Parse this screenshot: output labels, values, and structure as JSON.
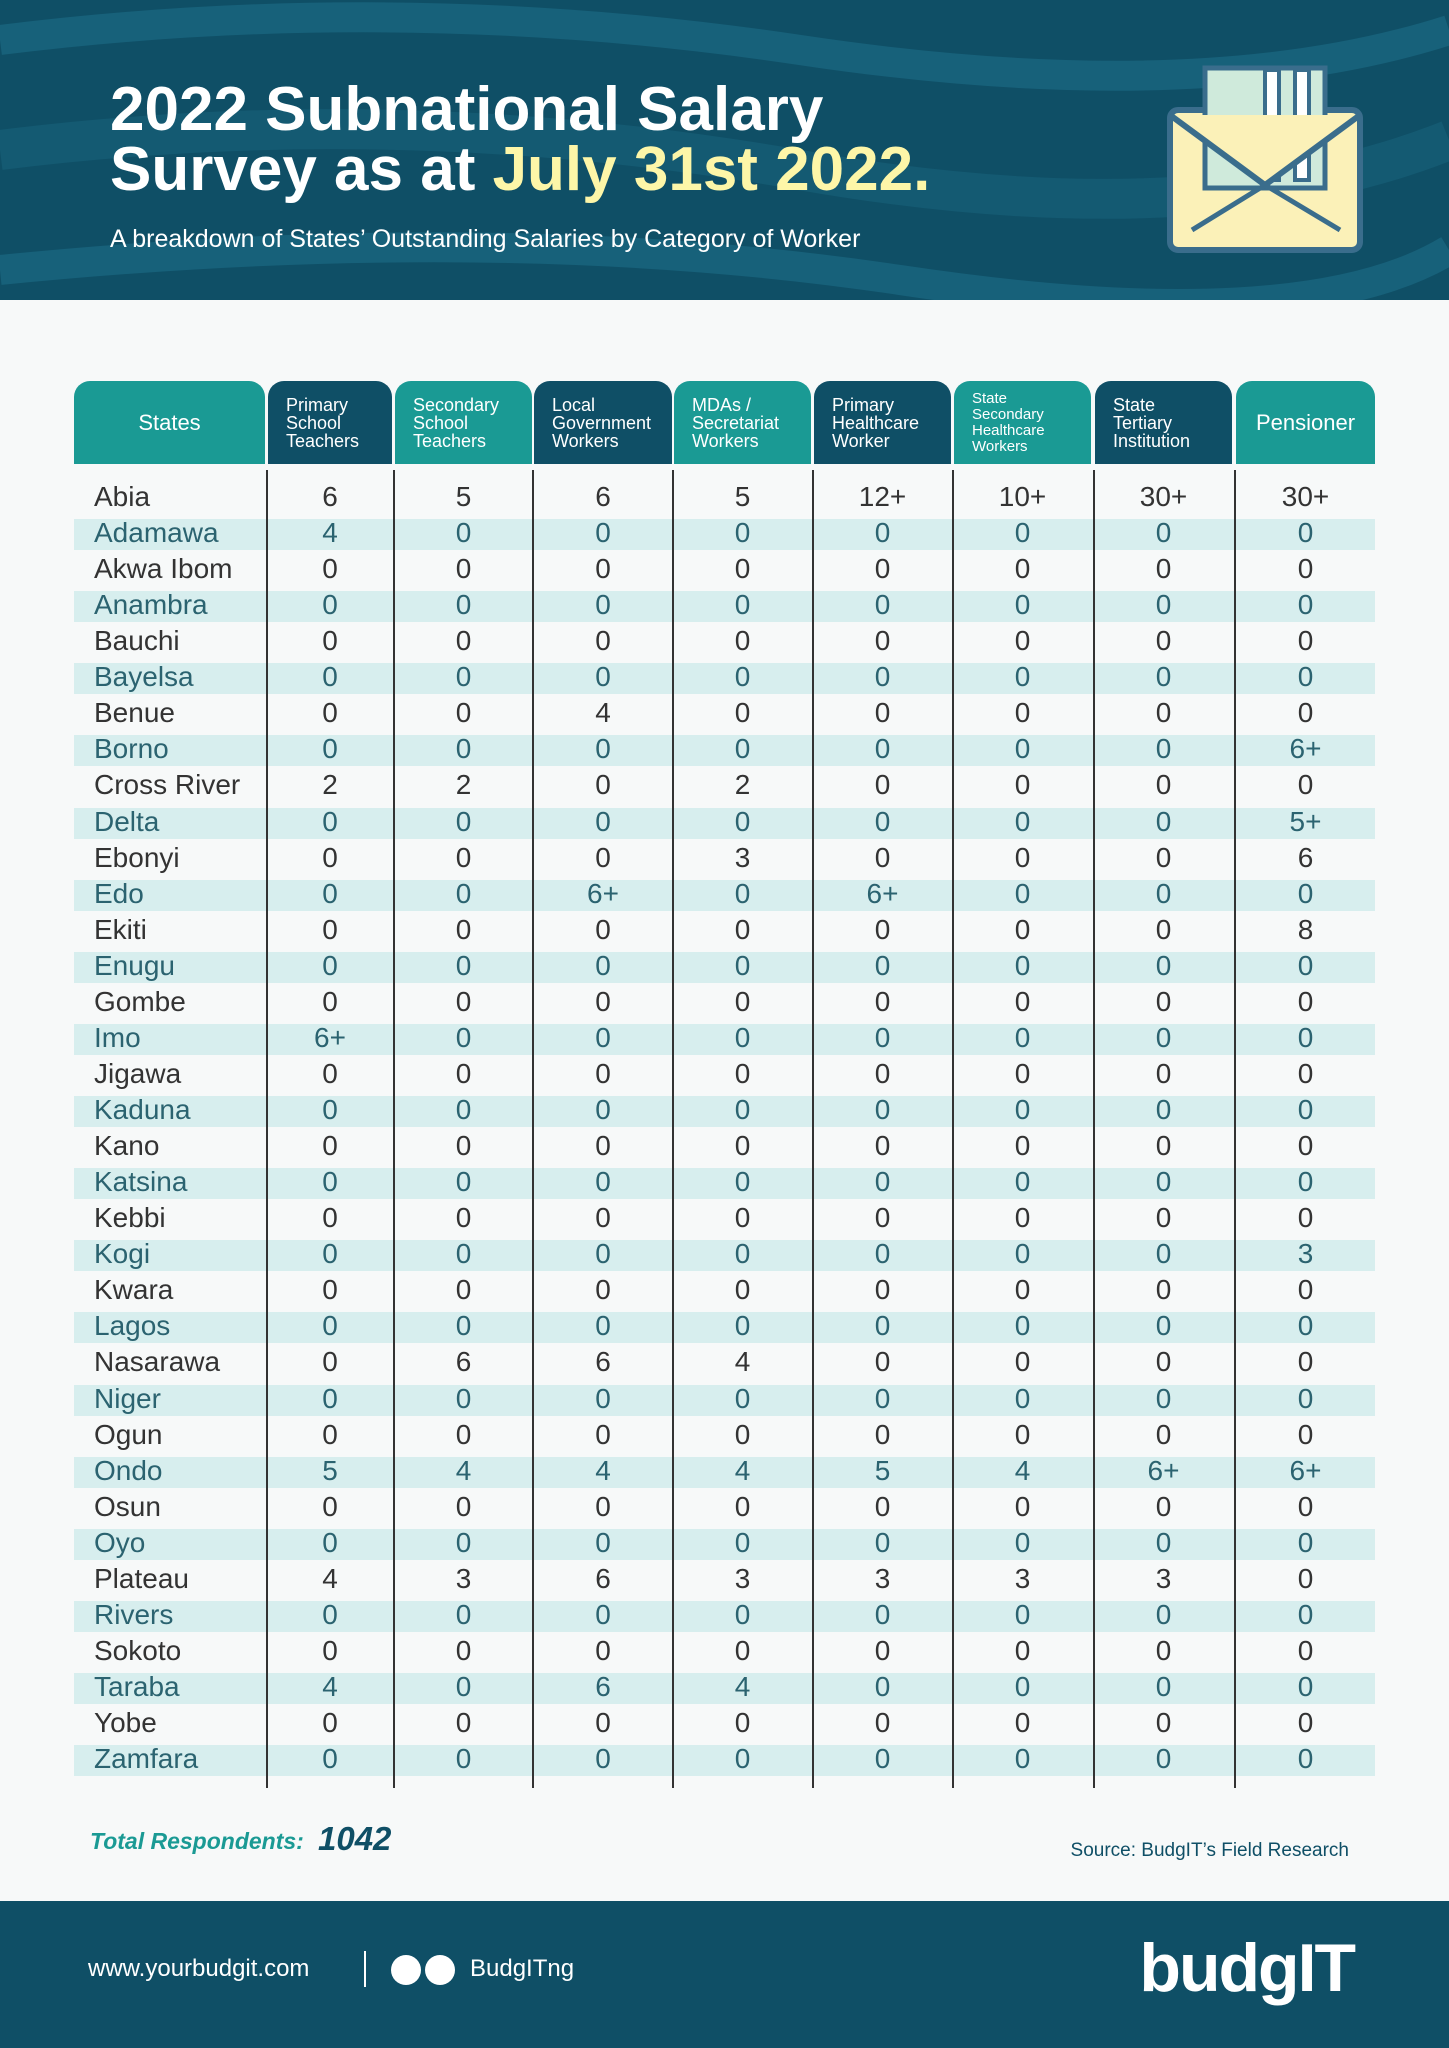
{
  "header": {
    "title_lines": [
      "2022 Subnational Salary",
      "Survey as at "
    ],
    "title_highlight": "July 31st 2022.",
    "subtitle": "A breakdown of States’ Outstanding Salaries by Category of Worker"
  },
  "table": {
    "columns": [
      [
        "States"
      ],
      [
        "Primary",
        "School",
        "Teachers"
      ],
      [
        "Secondary",
        "School",
        "Teachers"
      ],
      [
        "Local",
        "Government",
        "Workers"
      ],
      [
        "MDAs /",
        "Secretariat",
        "Workers"
      ],
      [
        "Primary",
        "Healthcare",
        "Worker"
      ],
      [
        "State",
        "Secondary",
        "Healthcare",
        "Workers"
      ],
      [
        "State",
        "Tertiary",
        "Institution"
      ],
      [
        "Pensioner"
      ]
    ],
    "rows": [
      [
        "Abia",
        "6",
        "5",
        "6",
        "5",
        "12+",
        "10+",
        "30+",
        "30+"
      ],
      [
        "Adamawa",
        "4",
        "0",
        "0",
        "0",
        "0",
        "0",
        "0",
        "0"
      ],
      [
        "Akwa Ibom",
        "0",
        "0",
        "0",
        "0",
        "0",
        "0",
        "0",
        "0"
      ],
      [
        "Anambra",
        "0",
        "0",
        "0",
        "0",
        "0",
        "0",
        "0",
        "0"
      ],
      [
        "Bauchi",
        "0",
        "0",
        "0",
        "0",
        "0",
        "0",
        "0",
        "0"
      ],
      [
        "Bayelsa",
        "0",
        "0",
        "0",
        "0",
        "0",
        "0",
        "0",
        "0"
      ],
      [
        "Benue",
        "0",
        "0",
        "4",
        "0",
        "0",
        "0",
        "0",
        "0"
      ],
      [
        "Borno",
        "0",
        "0",
        "0",
        "0",
        "0",
        "0",
        "0",
        "6+"
      ],
      [
        "Cross River",
        "2",
        "2",
        "0",
        "2",
        "0",
        "0",
        "0",
        "0"
      ],
      [
        "Delta",
        "0",
        "0",
        "0",
        "0",
        "0",
        "0",
        "0",
        "5+"
      ],
      [
        "Ebonyi",
        "0",
        "0",
        "0",
        "3",
        "0",
        "0",
        "0",
        "6"
      ],
      [
        "Edo",
        "0",
        "0",
        "6+",
        "0",
        "6+",
        "0",
        "0",
        "0"
      ],
      [
        "Ekiti",
        "0",
        "0",
        "0",
        "0",
        "0",
        "0",
        "0",
        "8"
      ],
      [
        "Enugu",
        "0",
        "0",
        "0",
        "0",
        "0",
        "0",
        "0",
        "0"
      ],
      [
        "Gombe",
        "0",
        "0",
        "0",
        "0",
        "0",
        "0",
        "0",
        "0"
      ],
      [
        "Imo",
        "6+",
        "0",
        "0",
        "0",
        "0",
        "0",
        "0",
        "0"
      ],
      [
        "Jigawa",
        "0",
        "0",
        "0",
        "0",
        "0",
        "0",
        "0",
        "0"
      ],
      [
        "Kaduna",
        "0",
        "0",
        "0",
        "0",
        "0",
        "0",
        "0",
        "0"
      ],
      [
        "Kano",
        "0",
        "0",
        "0",
        "0",
        "0",
        "0",
        "0",
        "0"
      ],
      [
        "Katsina",
        "0",
        "0",
        "0",
        "0",
        "0",
        "0",
        "0",
        "0"
      ],
      [
        "Kebbi",
        "0",
        "0",
        "0",
        "0",
        "0",
        "0",
        "0",
        "0"
      ],
      [
        "Kogi",
        "0",
        "0",
        "0",
        "0",
        "0",
        "0",
        "0",
        "3"
      ],
      [
        "Kwara",
        "0",
        "0",
        "0",
        "0",
        "0",
        "0",
        "0",
        "0"
      ],
      [
        "Lagos",
        "0",
        "0",
        "0",
        "0",
        "0",
        "0",
        "0",
        "0"
      ],
      [
        "Nasarawa",
        "0",
        "6",
        "6",
        "4",
        "0",
        "0",
        "0",
        "0"
      ],
      [
        "Niger",
        "0",
        "0",
        "0",
        "0",
        "0",
        "0",
        "0",
        "0"
      ],
      [
        "Ogun",
        "0",
        "0",
        "0",
        "0",
        "0",
        "0",
        "0",
        "0"
      ],
      [
        "Ondo",
        "5",
        "4",
        "4",
        "4",
        "5",
        "4",
        "6+",
        "6+"
      ],
      [
        "Osun",
        "0",
        "0",
        "0",
        "0",
        "0",
        "0",
        "0",
        "0"
      ],
      [
        "Oyo",
        "0",
        "0",
        "0",
        "0",
        "0",
        "0",
        "0",
        "0"
      ],
      [
        "Plateau",
        "4",
        "3",
        "6",
        "3",
        "3",
        "3",
        "3",
        "0"
      ],
      [
        "Rivers",
        "0",
        "0",
        "0",
        "0",
        "0",
        "0",
        "0",
        "0"
      ],
      [
        "Sokoto",
        "0",
        "0",
        "0",
        "0",
        "0",
        "0",
        "0",
        "0"
      ],
      [
        "Taraba",
        "4",
        "0",
        "6",
        "4",
        "0",
        "0",
        "0",
        "0"
      ],
      [
        "Yobe",
        "0",
        "0",
        "0",
        "0",
        "0",
        "0",
        "0",
        "0"
      ],
      [
        "Zamfara",
        "0",
        "0",
        "0",
        "0",
        "0",
        "0",
        "0",
        "0"
      ]
    ]
  },
  "totals": {
    "label": "Total Respondents:",
    "value": "1042"
  },
  "source": "Source: BudgIT’s Field Research",
  "footer": {
    "website": "www.yourbudgit.com",
    "handle": "BudgITng",
    "logo": "budgIT"
  }
}
